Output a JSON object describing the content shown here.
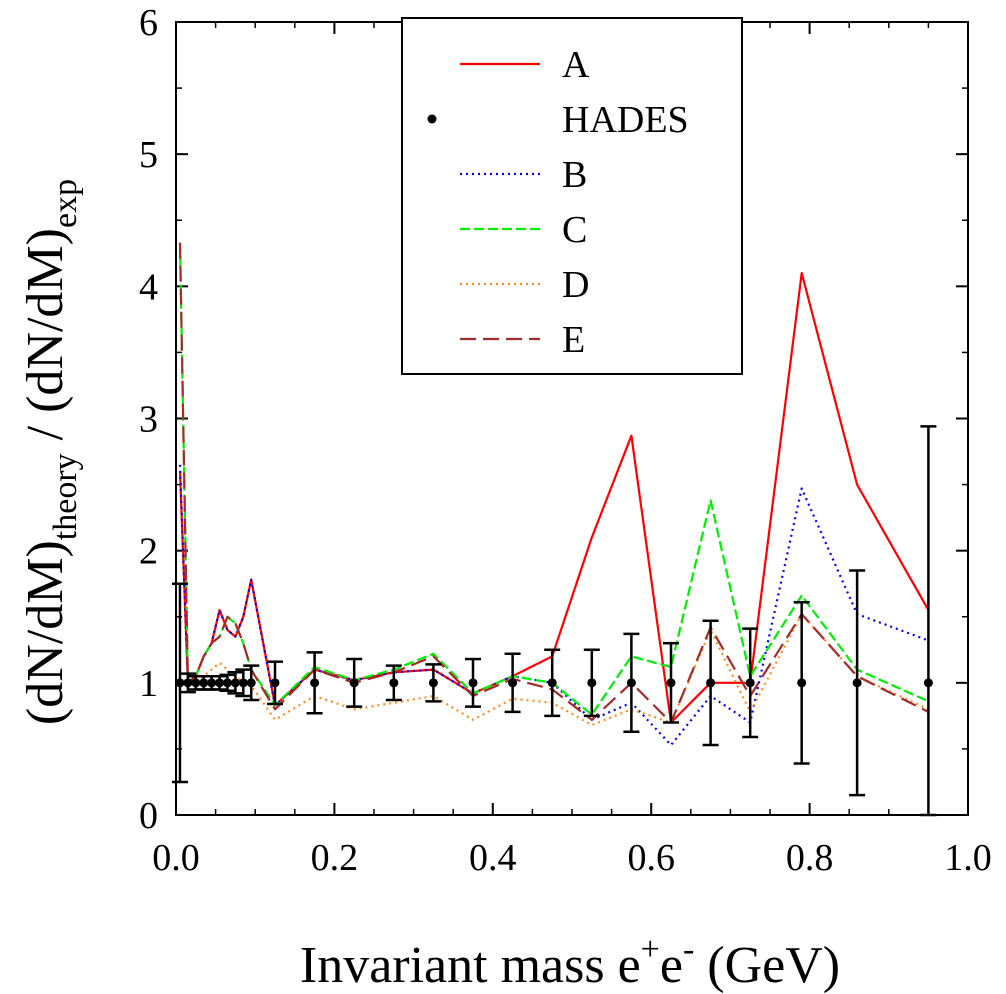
{
  "chart_data": {
    "type": "line",
    "xlabel": "Invariant mass e+e- (GeV)",
    "xlabel_parts": {
      "base": "Invariant mass e",
      "sup1": "+",
      "mid": "e",
      "sup2": "-",
      "tail": " (GeV)"
    },
    "ylabel": "(dN/dM)theory / (dN/dM)exp",
    "ylabel_parts": {
      "a": "(dN/dM)",
      "sub1": "theory",
      "b": " / (dN/dM)",
      "sub2": "exp"
    },
    "xlim": [
      0.0,
      1.0
    ],
    "ylim": [
      0,
      6
    ],
    "x_ticks": [
      "0.0",
      "0.2",
      "0.4",
      "0.6",
      "0.8",
      "1.0"
    ],
    "y_ticks": [
      "0",
      "1",
      "2",
      "3",
      "4",
      "5",
      "6"
    ],
    "legend_position": "top-center",
    "series": [
      {
        "name": "A",
        "style": "solid",
        "color": "#ff0000",
        "x": [
          0.005,
          0.015,
          0.025,
          0.035,
          0.045,
          0.055,
          0.065,
          0.075,
          0.085,
          0.095,
          0.125,
          0.175,
          0.225,
          0.275,
          0.325,
          0.375,
          0.425,
          0.475,
          0.525,
          0.575,
          0.625,
          0.675,
          0.725,
          0.79,
          0.86,
          0.95
        ],
        "y": [
          2.6,
          1.0,
          1.05,
          1.2,
          1.3,
          1.55,
          1.4,
          1.35,
          1.5,
          1.78,
          0.83,
          1.1,
          1.02,
          1.08,
          1.1,
          0.92,
          1.05,
          1.2,
          2.1,
          2.87,
          0.7,
          1.0,
          1.0,
          4.1,
          2.5,
          1.55
        ]
      },
      {
        "name": "B",
        "style": "dotted",
        "color": "#0000ff",
        "x": [
          0.005,
          0.015,
          0.025,
          0.035,
          0.045,
          0.055,
          0.065,
          0.075,
          0.085,
          0.095,
          0.125,
          0.175,
          0.225,
          0.275,
          0.325,
          0.375,
          0.425,
          0.475,
          0.525,
          0.575,
          0.625,
          0.675,
          0.725,
          0.79,
          0.86,
          0.95
        ],
        "y": [
          2.65,
          1.0,
          1.05,
          1.2,
          1.3,
          1.55,
          1.4,
          1.35,
          1.5,
          1.78,
          0.83,
          1.1,
          1.02,
          1.08,
          1.1,
          0.92,
          1.05,
          1.0,
          0.72,
          0.85,
          0.53,
          0.9,
          0.7,
          2.47,
          1.52,
          1.32
        ]
      },
      {
        "name": "C",
        "style": "dashed",
        "color": "#00ee00",
        "x": [
          0.005,
          0.015,
          0.025,
          0.035,
          0.045,
          0.055,
          0.065,
          0.075,
          0.085,
          0.095,
          0.125,
          0.175,
          0.225,
          0.275,
          0.325,
          0.375,
          0.425,
          0.475,
          0.525,
          0.575,
          0.625,
          0.675,
          0.725,
          0.79,
          0.86,
          0.95
        ],
        "y": [
          4.33,
          1.0,
          1.05,
          1.2,
          1.3,
          1.35,
          1.5,
          1.45,
          1.3,
          1.1,
          0.83,
          1.12,
          1.02,
          1.1,
          1.22,
          0.92,
          1.05,
          1.0,
          0.76,
          1.2,
          1.12,
          2.38,
          1.05,
          1.66,
          1.1,
          0.86
        ]
      },
      {
        "name": "D",
        "style": "dotted",
        "color": "#ff8c1a",
        "x": [
          0.005,
          0.015,
          0.025,
          0.035,
          0.045,
          0.055,
          0.065,
          0.075,
          0.085,
          0.095,
          0.125,
          0.175,
          0.225,
          0.275,
          0.325,
          0.375,
          0.425,
          0.475,
          0.525,
          0.575,
          0.625,
          0.675,
          0.725,
          0.79,
          0.86,
          0.95
        ],
        "y": [
          1.0,
          0.98,
          1.0,
          1.05,
          1.1,
          1.15,
          1.1,
          1.05,
          1.0,
          0.98,
          0.72,
          0.9,
          0.8,
          0.85,
          0.9,
          0.72,
          0.88,
          0.85,
          0.68,
          0.8,
          0.7,
          1.4,
          0.78,
          1.52,
          1.05,
          0.8
        ]
      },
      {
        "name": "E",
        "style": "longdash",
        "color": "#a52a2a",
        "x": [
          0.005,
          0.015,
          0.025,
          0.035,
          0.045,
          0.055,
          0.065,
          0.075,
          0.085,
          0.095,
          0.125,
          0.175,
          0.225,
          0.275,
          0.325,
          0.375,
          0.425,
          0.475,
          0.525,
          0.575,
          0.625,
          0.675,
          0.725,
          0.79,
          0.86,
          0.95
        ],
        "y": [
          4.33,
          1.0,
          1.05,
          1.2,
          1.3,
          1.35,
          1.5,
          1.45,
          1.3,
          1.1,
          0.8,
          1.1,
          1.0,
          1.08,
          1.2,
          0.9,
          1.03,
          0.95,
          0.72,
          1.0,
          0.7,
          1.42,
          0.9,
          1.52,
          1.05,
          0.78
        ]
      }
    ],
    "hades": {
      "name": "HADES",
      "x": [
        0.005,
        0.015,
        0.025,
        0.035,
        0.045,
        0.055,
        0.065,
        0.075,
        0.085,
        0.095,
        0.125,
        0.175,
        0.225,
        0.275,
        0.325,
        0.375,
        0.425,
        0.475,
        0.525,
        0.575,
        0.625,
        0.675,
        0.725,
        0.79,
        0.86,
        0.95
      ],
      "y": [
        1,
        1,
        1,
        1,
        1,
        1,
        1,
        1,
        1,
        1,
        1,
        1,
        1,
        1,
        1,
        1,
        1,
        1,
        1,
        1,
        1,
        1,
        1,
        1,
        1,
        1
      ],
      "err": [
        0.75,
        0.07,
        0.05,
        0.05,
        0.05,
        0.05,
        0.06,
        0.08,
        0.1,
        0.13,
        0.16,
        0.23,
        0.18,
        0.13,
        0.14,
        0.18,
        0.22,
        0.25,
        0.25,
        0.37,
        0.3,
        0.47,
        0.41,
        0.61,
        0.85,
        1.94
      ]
    }
  }
}
